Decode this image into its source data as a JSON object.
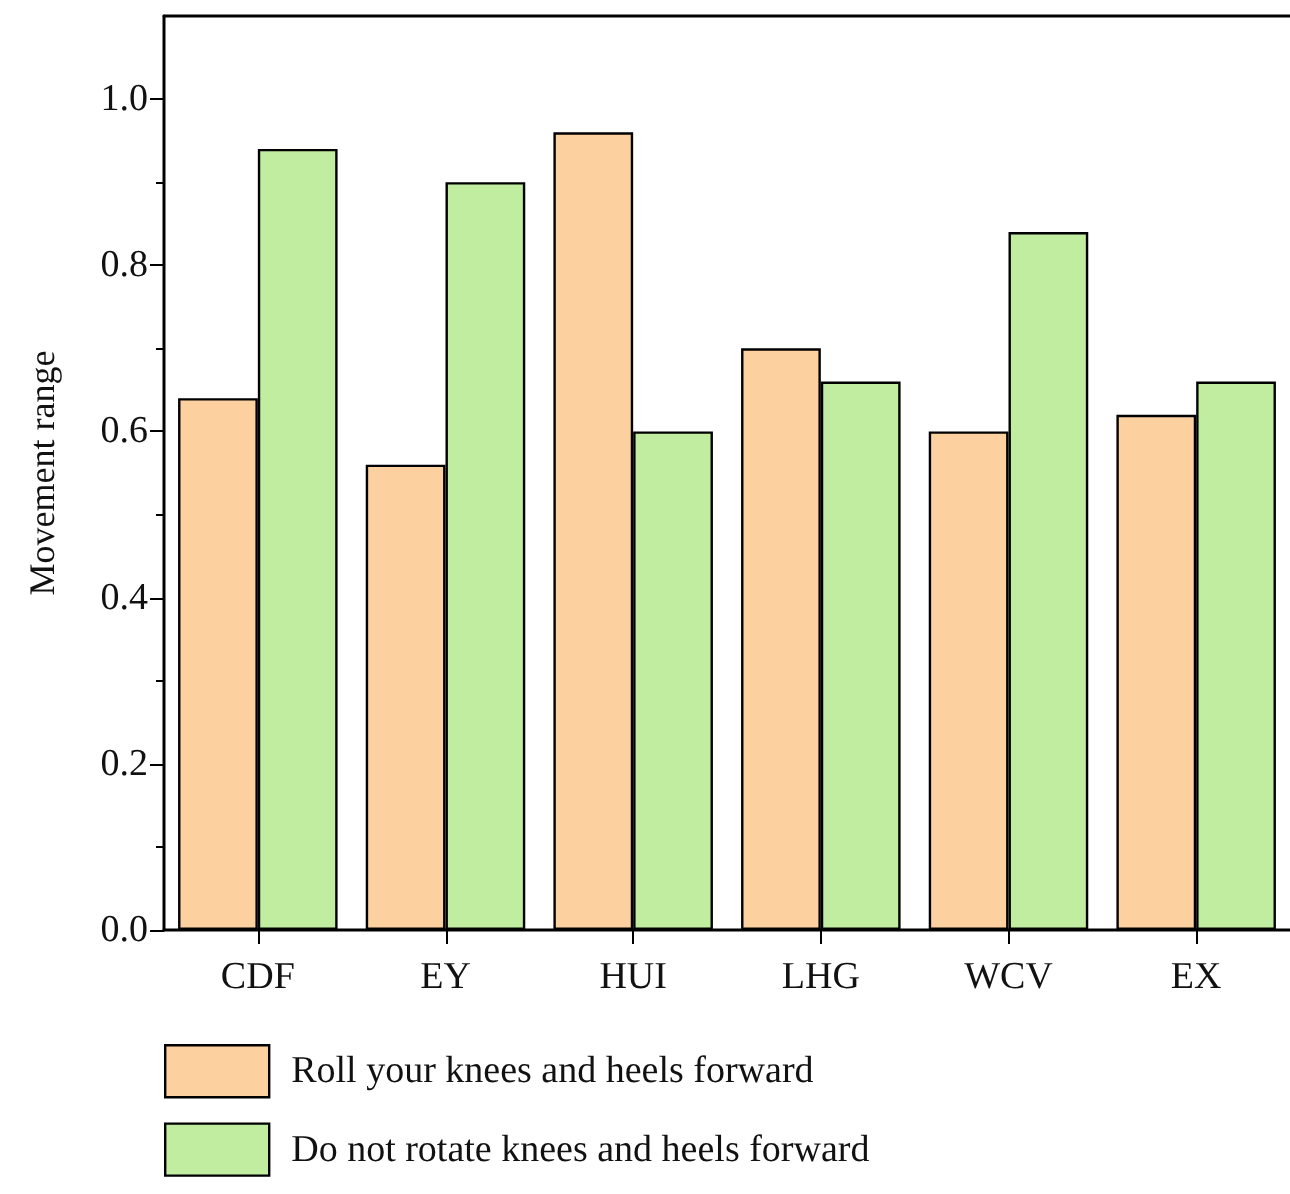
{
  "chart_data": {
    "type": "bar",
    "ylabel": "Movement range",
    "categories": [
      "CDF",
      "EY",
      "HUI",
      "LHG",
      "WCV",
      "EX"
    ],
    "series": [
      {
        "name": "Roll your knees and heels forward",
        "color": "#fdd09f",
        "values": [
          0.64,
          0.56,
          0.96,
          0.7,
          0.6,
          0.62
        ]
      },
      {
        "name": "Do not rotate knees and heels forward",
        "color": "#c0eda0",
        "values": [
          0.94,
          0.9,
          0.6,
          0.66,
          0.84,
          0.66
        ]
      }
    ],
    "ylim": [
      0,
      1.1
    ],
    "yticks": [
      {
        "value": 0,
        "label": "0.0"
      },
      {
        "value": 0.2,
        "label": "0.2"
      },
      {
        "value": 0.4,
        "label": "0.4"
      },
      {
        "value": 0.6,
        "label": "0.6"
      },
      {
        "value": 0.8,
        "label": "0.8"
      },
      {
        "value": 1,
        "label": "1.0"
      }
    ],
    "grid": false,
    "legend": "bottom left"
  }
}
